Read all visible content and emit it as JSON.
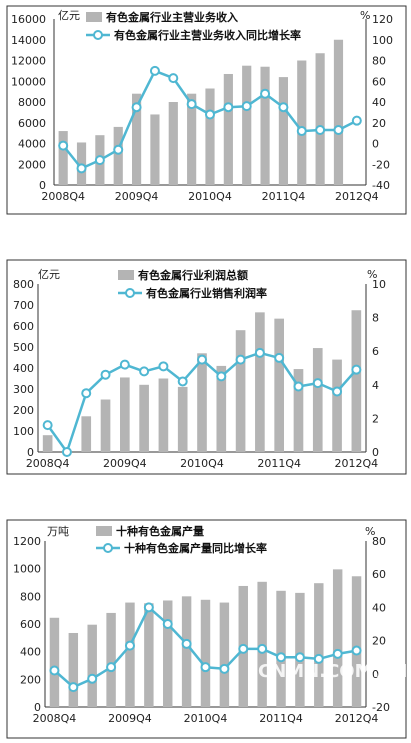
{
  "chart_data": [
    {
      "type": "bar",
      "panel_name": "revenue",
      "legend_position": "top",
      "categories": [
        "2008Q4",
        "2009Q1",
        "2009Q2",
        "2009Q3",
        "2009Q4",
        "2010Q1",
        "2010Q2",
        "2010Q3",
        "2010Q4",
        "2011Q1",
        "2011Q2",
        "2011Q3",
        "2011Q4",
        "2012Q1",
        "2012Q2",
        "2012Q3",
        "2012Q4"
      ],
      "x_tick_labels": [
        "2008Q4",
        "2009Q4",
        "2010Q4",
        "2011Q4",
        "2012Q4"
      ],
      "x_tick_indices": [
        0,
        4,
        8,
        12,
        16
      ],
      "left_axis": {
        "unit": "亿元",
        "range": [
          0,
          16000
        ],
        "ticks": [
          0,
          2000,
          4000,
          6000,
          8000,
          10000,
          12000,
          14000,
          16000
        ]
      },
      "right_axis": {
        "unit": "%",
        "range": [
          -40,
          120
        ],
        "ticks": [
          -40,
          -20,
          0,
          20,
          40,
          60,
          80,
          100,
          120
        ]
      },
      "series": [
        {
          "name": "有色金属行业主营业务收入",
          "kind": "bar",
          "axis": "left",
          "color": "#b4b4b4",
          "values": [
            5200,
            4100,
            4800,
            5600,
            8800,
            6800,
            8000,
            8800,
            9300,
            10700,
            11500,
            11400,
            10400,
            12000,
            12700,
            14000,
            0
          ]
        },
        {
          "name": "有色金属行业主营业务收入同比增长率",
          "kind": "line",
          "axis": "right",
          "color": "#4fb7d2",
          "values": [
            -2,
            -24,
            -16,
            -6,
            35,
            70,
            63,
            38,
            28,
            35,
            36,
            48,
            35,
            12,
            13,
            13,
            22
          ]
        }
      ]
    },
    {
      "type": "bar",
      "panel_name": "profit",
      "legend_position": "top",
      "categories": [
        "2008Q4",
        "2009Q1",
        "2009Q2",
        "2009Q3",
        "2009Q4",
        "2010Q1",
        "2010Q2",
        "2010Q3",
        "2010Q4",
        "2011Q1",
        "2011Q2",
        "2011Q3",
        "2011Q4",
        "2012Q1",
        "2012Q2",
        "2012Q3",
        "2012Q4"
      ],
      "x_tick_labels": [
        "2008Q4",
        "2009Q4",
        "2010Q4",
        "2011Q4",
        "2012Q4"
      ],
      "x_tick_indices": [
        0,
        4,
        8,
        12,
        16
      ],
      "left_axis": {
        "unit": "亿元",
        "range": [
          0,
          800
        ],
        "ticks": [
          0,
          100,
          200,
          300,
          400,
          500,
          600,
          700,
          800
        ]
      },
      "right_axis": {
        "unit": "%",
        "range": [
          0,
          10
        ],
        "ticks": [
          0,
          2,
          4,
          6,
          8,
          10
        ]
      },
      "series": [
        {
          "name": "有色金属行业利润总额",
          "kind": "bar",
          "axis": "left",
          "color": "#b4b4b4",
          "values": [
            80,
            0,
            170,
            250,
            355,
            320,
            350,
            310,
            470,
            410,
            580,
            665,
            635,
            395,
            495,
            440,
            675
          ]
        },
        {
          "name": "有色金属行业销售利润率",
          "kind": "line",
          "axis": "right",
          "color": "#4fb7d2",
          "values": [
            1.6,
            0,
            3.5,
            4.6,
            5.2,
            4.8,
            5.1,
            4.2,
            5.5,
            4.5,
            5.5,
            5.9,
            5.6,
            3.9,
            4.1,
            3.6,
            4.9
          ]
        }
      ]
    },
    {
      "type": "bar",
      "panel_name": "output",
      "legend_position": "top",
      "categories": [
        "2008Q4",
        "2009Q1",
        "2009Q2",
        "2009Q3",
        "2009Q4",
        "2010Q1",
        "2010Q2",
        "2010Q3",
        "2010Q4",
        "2011Q1",
        "2011Q2",
        "2011Q3",
        "2011Q4",
        "2012Q1",
        "2012Q2",
        "2012Q3",
        "2012Q4"
      ],
      "x_tick_labels": [
        "2008Q4",
        "2009Q4",
        "2010Q4",
        "2011Q4",
        "2012Q4"
      ],
      "x_tick_indices": [
        0,
        4,
        8,
        12,
        16
      ],
      "left_axis": {
        "unit": "万吨",
        "range": [
          0,
          1200
        ],
        "ticks": [
          0,
          200,
          400,
          600,
          800,
          1000,
          1200
        ]
      },
      "right_axis": {
        "unit": "%",
        "range": [
          -20,
          80
        ],
        "ticks": [
          -20,
          0,
          20,
          40,
          60,
          80
        ]
      },
      "series": [
        {
          "name": "十种有色金属产量",
          "kind": "bar",
          "axis": "left",
          "color": "#b4b4b4",
          "values": [
            645,
            535,
            595,
            680,
            755,
            750,
            770,
            800,
            775,
            755,
            875,
            905,
            840,
            825,
            895,
            995,
            945
          ]
        },
        {
          "name": "十种有色金属产量同比增长率",
          "kind": "line",
          "axis": "right",
          "color": "#4fb7d2",
          "values": [
            2,
            -8,
            -3,
            4,
            17,
            40,
            30,
            18,
            4,
            3,
            15,
            15,
            10,
            10,
            9,
            12,
            14
          ]
        }
      ]
    }
  ],
  "watermark": "CNMN.COM.CN"
}
